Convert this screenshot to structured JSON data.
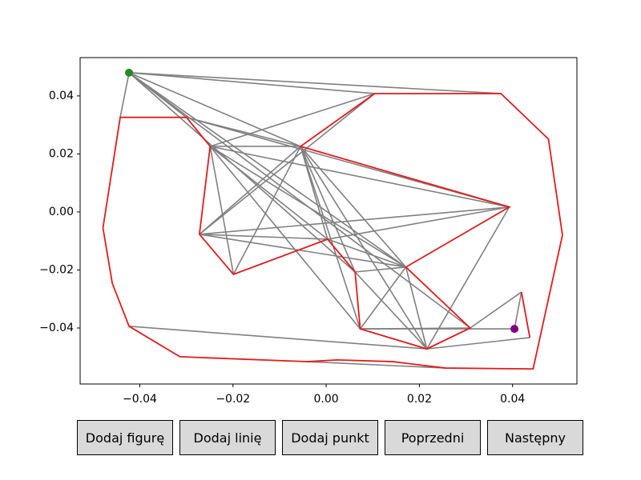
{
  "chart_data": {
    "type": "graph",
    "xlim": [
      -0.0528,
      0.0538
    ],
    "ylim": [
      -0.0593,
      0.0532
    ],
    "xticks": [
      {
        "value": -0.04,
        "label": "−0.04"
      },
      {
        "value": -0.02,
        "label": "−0.02"
      },
      {
        "value": 0,
        "label": "0.00"
      },
      0.02,
      0.04
    ],
    "yticks": [
      {
        "value": -0.04,
        "label": "−0.04"
      },
      {
        "value": -0.02,
        "label": "−0.02"
      },
      {
        "value": 0,
        "label": "0.00"
      },
      0.02,
      0.04
    ],
    "edge_color": "#808080",
    "nodes": [
      [
        -0.0423,
        0.048
      ],
      [
        -0.0442,
        0.0326
      ],
      [
        -0.03,
        0.0326
      ],
      [
        -0.0249,
        0.0226
      ],
      [
        -0.0272,
        -0.0077
      ],
      [
        -0.0199,
        -0.0215
      ],
      [
        0.0003,
        -0.0094
      ],
      [
        0.0062,
        -0.0207
      ],
      [
        0.0073,
        -0.0403
      ],
      [
        0.0216,
        -0.0472
      ],
      [
        0.0309,
        -0.04
      ],
      [
        0.0171,
        -0.019
      ],
      [
        0.0393,
        0.0017
      ],
      [
        -0.0055,
        0.0226
      ],
      [
        0.0104,
        0.0408
      ],
      [
        0.0375,
        0.0408
      ],
      [
        0.0404,
        -0.0403
      ],
      [
        0.0419,
        -0.0276
      ],
      [
        0.0437,
        -0.0433
      ],
      [
        -0.0423,
        -0.0394
      ],
      [
        0.0256,
        -0.0538
      ],
      [
        -0.0041,
        -0.0516
      ]
    ],
    "edges": [
      [
        0,
        1
      ],
      [
        0,
        2
      ],
      [
        0,
        14
      ],
      [
        0,
        15
      ],
      [
        0,
        13
      ],
      [
        0,
        11
      ],
      [
        0,
        7
      ],
      [
        0,
        10
      ],
      [
        3,
        14
      ],
      [
        3,
        13
      ],
      [
        3,
        12
      ],
      [
        3,
        11
      ],
      [
        3,
        6
      ],
      [
        3,
        5
      ],
      [
        3,
        8
      ],
      [
        2,
        13
      ],
      [
        4,
        13
      ],
      [
        4,
        12
      ],
      [
        4,
        6
      ],
      [
        4,
        11
      ],
      [
        5,
        13
      ],
      [
        5,
        6
      ],
      [
        13,
        8
      ],
      [
        13,
        9
      ],
      [
        13,
        7
      ],
      [
        13,
        11
      ],
      [
        13,
        6
      ],
      [
        6,
        11
      ],
      [
        6,
        12
      ],
      [
        7,
        11
      ],
      [
        7,
        9
      ],
      [
        8,
        10
      ],
      [
        8,
        9
      ],
      [
        8,
        16
      ],
      [
        11,
        9
      ],
      [
        11,
        8
      ],
      [
        12,
        9
      ],
      [
        9,
        10
      ],
      [
        9,
        18
      ],
      [
        16,
        17
      ],
      [
        17,
        10
      ],
      [
        19,
        9
      ],
      [
        21,
        20
      ],
      [
        2,
        12
      ],
      [
        4,
        14
      ]
    ],
    "boundaries": [
      {
        "color": "#e41a1c",
        "x": [
          -0.0442,
          -0.03,
          -0.0249,
          -0.0272,
          -0.0199,
          0.0003,
          0.0062,
          0.0073,
          0.0216,
          0.0309,
          0.0171,
          0.0393,
          -0.0055,
          0.0104,
          0.0375,
          0.0477,
          0.0507,
          0.0444,
          0.0256,
          0.0143,
          0.0024,
          -0.0041,
          -0.0314,
          -0.0423,
          -0.0459,
          -0.0479
        ],
        "y": [
          0.0326,
          0.0326,
          0.0226,
          -0.0077,
          -0.0215,
          -0.0094,
          -0.0207,
          -0.0403,
          -0.0472,
          -0.04,
          -0.019,
          0.0017,
          0.0226,
          0.0408,
          0.0408,
          0.0251,
          -0.008,
          -0.0541,
          -0.0538,
          -0.0516,
          -0.051,
          -0.0516,
          -0.0499,
          -0.0394,
          -0.0246,
          -0.0055
        ]
      },
      {
        "color": "#e41a1c",
        "x": [
          0.0419,
          0.0437
        ],
        "y": [
          -0.0276,
          -0.0433
        ]
      }
    ],
    "start": {
      "x": -0.0423,
      "y": 0.048,
      "color": "#228b22"
    },
    "end": {
      "x": 0.0404,
      "y": -0.0403,
      "color": "#800080"
    }
  },
  "buttons": [
    "Dodaj figurę",
    "Dodaj linię",
    "Dodaj punkt",
    "Poprzedni",
    "Następny"
  ]
}
